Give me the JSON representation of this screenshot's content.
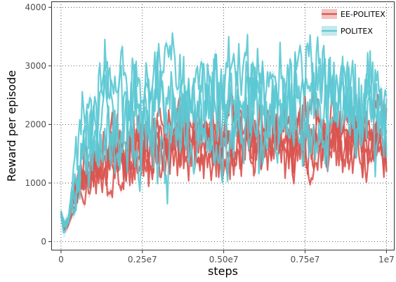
{
  "chart_data": {
    "type": "line",
    "title": "",
    "xlabel": "steps",
    "ylabel": "Reward per episode",
    "xlim": [
      -300000,
      10250000
    ],
    "ylim": [
      -150,
      4100
    ],
    "x_ticks": [
      0,
      2500000,
      5000000,
      7500000,
      10000000
    ],
    "x_tick_labels": [
      "0",
      "0.25e7",
      "0.50e7",
      "0.75e7",
      "1e7"
    ],
    "y_ticks": [
      0,
      1000,
      2000,
      3000,
      4000
    ],
    "y_tick_labels": [
      "0",
      "1000",
      "2000",
      "3000",
      "4000"
    ],
    "grid": true,
    "grid_style": "dotted",
    "legend_position": "top-right",
    "band_note": "shaded band around each line",
    "series": [
      {
        "name": "EE-POLITEX",
        "color": "#d9534f",
        "band_color": "#f2c3c1",
        "runs": [
          {
            "x": [
              0,
              100000,
              200000,
              400000,
              600000,
              800000,
              1000000,
              1500000,
              2000000,
              2500000,
              3000000,
              3500000,
              4000000,
              4500000,
              5000000,
              5500000,
              6000000,
              6500000,
              7000000,
              7500000,
              8000000,
              8500000,
              9000000,
              9500000,
              10000000
            ],
            "y": [
              450,
              250,
              280,
              650,
              1050,
              1250,
              1380,
              1500,
              1600,
              1650,
              1700,
              1750,
              1800,
              1820,
              1780,
              1850,
              1800,
              1850,
              1820,
              1800,
              1850,
              1800,
              1850,
              1820,
              1700
            ]
          },
          {
            "x": [
              0,
              100000,
              200000,
              400000,
              600000,
              800000,
              1000000,
              1500000,
              2000000,
              2500000,
              3000000,
              3500000,
              4000000,
              4500000,
              5000000,
              5500000,
              6000000,
              6500000,
              7000000,
              7500000,
              8000000,
              8500000,
              9000000,
              9500000,
              10000000
            ],
            "y": [
              420,
              230,
              300,
              700,
              950,
              1150,
              1250,
              1350,
              1400,
              1450,
              1500,
              1550,
              1550,
              1600,
              1580,
              1550,
              1600,
              1580,
              1600,
              1550,
              1600,
              1580,
              1550,
              1600,
              1500
            ]
          },
          {
            "x": [
              0,
              100000,
              200000,
              400000,
              600000,
              800000,
              1000000,
              1500000,
              2000000,
              2500000,
              3000000,
              3500000,
              4000000,
              4500000,
              5000000,
              5500000,
              6000000,
              6500000,
              7000000,
              7500000,
              8000000,
              8500000,
              9000000,
              9500000,
              10000000
            ],
            "y": [
              400,
              220,
              260,
              600,
              900,
              1100,
              1200,
              1250,
              1300,
              1350,
              1380,
              1400,
              1420,
              1450,
              1480,
              1500,
              1520,
              1550,
              1580,
              1600,
              1620,
              1600,
              1650,
              1650,
              1550
            ]
          },
          {
            "x": [
              0,
              100000,
              200000,
              400000,
              600000,
              800000,
              1000000,
              1500000,
              2000000,
              2500000,
              3000000,
              3500000,
              4000000,
              4500000,
              5000000,
              5500000,
              6000000,
              6500000,
              7000000,
              7500000,
              8000000,
              8500000,
              9000000,
              9500000,
              10000000
            ],
            "y": [
              460,
              260,
              320,
              750,
              1100,
              1300,
              1450,
              1650,
              1750,
              1850,
              1900,
              1950,
              1950,
              1900,
              1850,
              1900,
              1950,
              2000,
              2050,
              2000,
              2050,
              2000,
              2050,
              2000,
              2100
            ]
          },
          {
            "x": [
              0,
              100000,
              200000,
              400000,
              600000,
              800000,
              1000000,
              1500000,
              2000000,
              2500000,
              3000000,
              3500000,
              4000000,
              4500000,
              5000000,
              5500000,
              6000000,
              6500000,
              7000000,
              7500000,
              8000000,
              8500000,
              9000000,
              9500000,
              10000000
            ],
            "y": [
              430,
              240,
              290,
              680,
              1000,
              1200,
              1300,
              1400,
              1500,
              1550,
              1600,
              1620,
              1650,
              1680,
              1700,
              1650,
              1700,
              1720,
              1750,
              1700,
              1720,
              1750,
              1700,
              1720,
              1650
            ]
          }
        ]
      },
      {
        "name": "POLITEX",
        "color": "#5bc8d3",
        "band_color": "#c4e9ed",
        "runs": [
          {
            "x": [
              0,
              100000,
              200000,
              400000,
              600000,
              800000,
              1000000,
              1500000,
              2000000,
              2500000,
              3000000,
              3500000,
              4000000,
              4500000,
              5000000,
              5500000,
              6000000,
              6500000,
              7000000,
              7500000,
              8000000,
              8500000,
              9000000,
              9500000,
              10000000
            ],
            "y": [
              450,
              250,
              350,
              900,
              1700,
              2300,
              2500,
              2600,
              2650,
              2700,
              2650,
              2700,
              2650,
              2700,
              2650,
              2700,
              2650,
              2700,
              2650,
              2700,
              2650,
              2700,
              2650,
              2600,
              2500
            ]
          },
          {
            "x": [
              0,
              100000,
              200000,
              400000,
              600000,
              800000,
              1000000,
              1500000,
              2000000,
              2500000,
              3000000,
              3500000,
              4000000,
              4500000,
              5000000,
              5500000,
              6000000,
              6500000,
              7000000,
              7500000,
              8000000,
              8500000,
              9000000,
              9500000,
              10000000
            ],
            "y": [
              420,
              230,
              330,
              800,
              1400,
              1800,
              2000,
              2100,
              2150,
              2200,
              2250,
              2200,
              2250,
              2300,
              2250,
              2300,
              2350,
              2300,
              2350,
              2300,
              2350,
              2300,
              2350,
              2300,
              2250
            ]
          },
          {
            "x": [
              0,
              100000,
              200000,
              400000,
              600000,
              800000,
              1000000,
              1500000,
              2000000,
              2500000,
              3000000,
              3500000,
              4000000,
              4500000,
              5000000,
              5500000,
              6000000,
              6500000,
              7000000,
              7500000,
              8000000,
              8500000,
              9000000,
              9500000,
              10000000
            ],
            "y": [
              440,
              240,
              320,
              850,
              1500,
              1900,
              2100,
              2250,
              2300,
              2350,
              2300,
              2400,
              2450,
              2400,
              2450,
              2400,
              2450,
              2500,
              2450,
              2500,
              2450,
              2400,
              2450,
              2500,
              2400
            ]
          },
          {
            "x": [
              0,
              100000,
              200000,
              400000,
              600000,
              800000,
              1000000,
              1500000,
              2000000,
              2500000,
              3000000,
              3500000,
              4000000,
              4500000,
              5000000,
              5500000,
              6000000,
              6500000,
              7000000,
              7500000,
              8000000,
              8500000,
              9000000,
              9500000,
              10000000
            ],
            "y": [
              410,
              220,
              310,
              700,
              1100,
              1350,
              1450,
              1550,
              1600,
              1650,
              1700,
              1750,
              1800,
              1850,
              1800,
              1850,
              1900,
              1850,
              1900,
              1950,
              1900,
              1950,
              2000,
              1950,
              2000
            ]
          }
        ]
      }
    ]
  }
}
